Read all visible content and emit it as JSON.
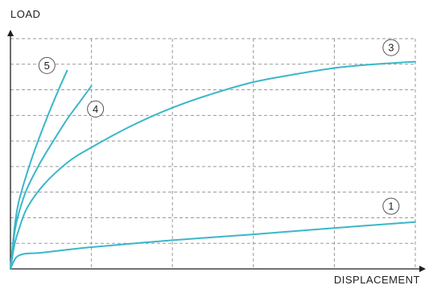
{
  "chart_data": {
    "type": "line",
    "xlabel": "DISPLACEMENT",
    "ylabel": "LOAD",
    "xlim": [
      0,
      5
    ],
    "ylim": [
      0,
      9
    ],
    "grid": true,
    "x_tick_count": 5,
    "y_tick_count": 9,
    "series": [
      {
        "name": "1",
        "x": [
          0,
          0.05,
          0.1,
          0.2,
          0.4,
          1.0,
          2.0,
          3.0,
          4.0,
          5.0
        ],
        "y": [
          0,
          0.35,
          0.52,
          0.6,
          0.64,
          0.85,
          1.12,
          1.35,
          1.6,
          1.83
        ],
        "color": "#3bb7c9",
        "marker": {
          "x": 4.7,
          "y": 2.45
        }
      },
      {
        "name": "3",
        "x": [
          0,
          0.05,
          0.1,
          0.2,
          0.4,
          0.7,
          1.0,
          1.5,
          2.0,
          2.5,
          3.0,
          3.5,
          4.0,
          4.5,
          5.0
        ],
        "y": [
          0,
          0.95,
          1.5,
          2.35,
          3.25,
          4.15,
          4.75,
          5.6,
          6.3,
          6.85,
          7.3,
          7.6,
          7.85,
          8.0,
          8.1
        ],
        "color": "#3bb7c9",
        "marker": {
          "x": 4.7,
          "y": 8.65
        }
      },
      {
        "name": "4",
        "x": [
          0,
          0.05,
          0.1,
          0.2,
          0.35,
          0.5,
          0.7,
          0.85,
          1.0
        ],
        "y": [
          0,
          1.4,
          2.15,
          3.1,
          4.05,
          4.85,
          5.85,
          6.5,
          7.15
        ],
        "color": "#3bb7c9",
        "marker": {
          "x": 1.05,
          "y": 6.25
        }
      },
      {
        "name": "5",
        "x": [
          0,
          0.05,
          0.1,
          0.2,
          0.3,
          0.45,
          0.6,
          0.7
        ],
        "y": [
          0,
          1.6,
          2.6,
          3.7,
          4.65,
          5.9,
          7.05,
          7.75
        ],
        "color": "#3bb7c9",
        "marker": {
          "x": 0.45,
          "y": 7.95
        }
      }
    ]
  }
}
